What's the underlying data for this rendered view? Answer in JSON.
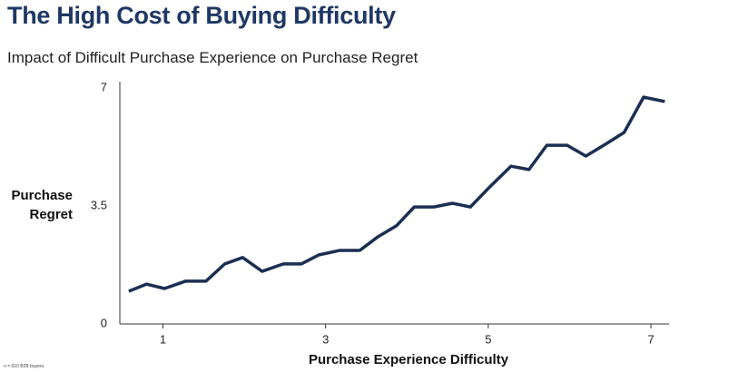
{
  "chart_data": {
    "type": "line",
    "title": "The High Cost of Buying Difficulty",
    "subtitle": "Impact of Difficult Purchase Experience on Purchase Regret",
    "x_label": "Purchase Experience Difficulty",
    "y_label": "Purchase Regret",
    "footnote": "n = 610 B2B buyers.",
    "x": [
      0.58,
      0.8,
      1.02,
      1.28,
      1.53,
      1.76,
      1.98,
      2.22,
      2.48,
      2.7,
      2.92,
      3.17,
      3.42,
      3.64,
      3.87,
      4.09,
      4.33,
      4.56,
      4.78,
      5.02,
      5.28,
      5.5,
      5.72,
      5.97,
      6.2,
      6.42,
      6.67,
      6.91,
      7.17
    ],
    "series": [
      {
        "name": "Purchase Regret",
        "color": "#1b2f52",
        "values": [
          0.97,
          1.18,
          1.05,
          1.27,
          1.27,
          1.78,
          1.97,
          1.56,
          1.78,
          1.78,
          2.05,
          2.18,
          2.18,
          2.58,
          2.91,
          3.47,
          3.47,
          3.58,
          3.47,
          4.07,
          4.68,
          4.58,
          5.3,
          5.3,
          4.98,
          5.3,
          5.68,
          6.73,
          6.6
        ]
      }
    ],
    "xlim": [
      0.47,
      7.2
    ],
    "xticks": [
      1,
      3,
      5,
      7
    ],
    "ylim": [
      0,
      7
    ],
    "yticks": [
      0,
      3.5,
      7
    ]
  }
}
